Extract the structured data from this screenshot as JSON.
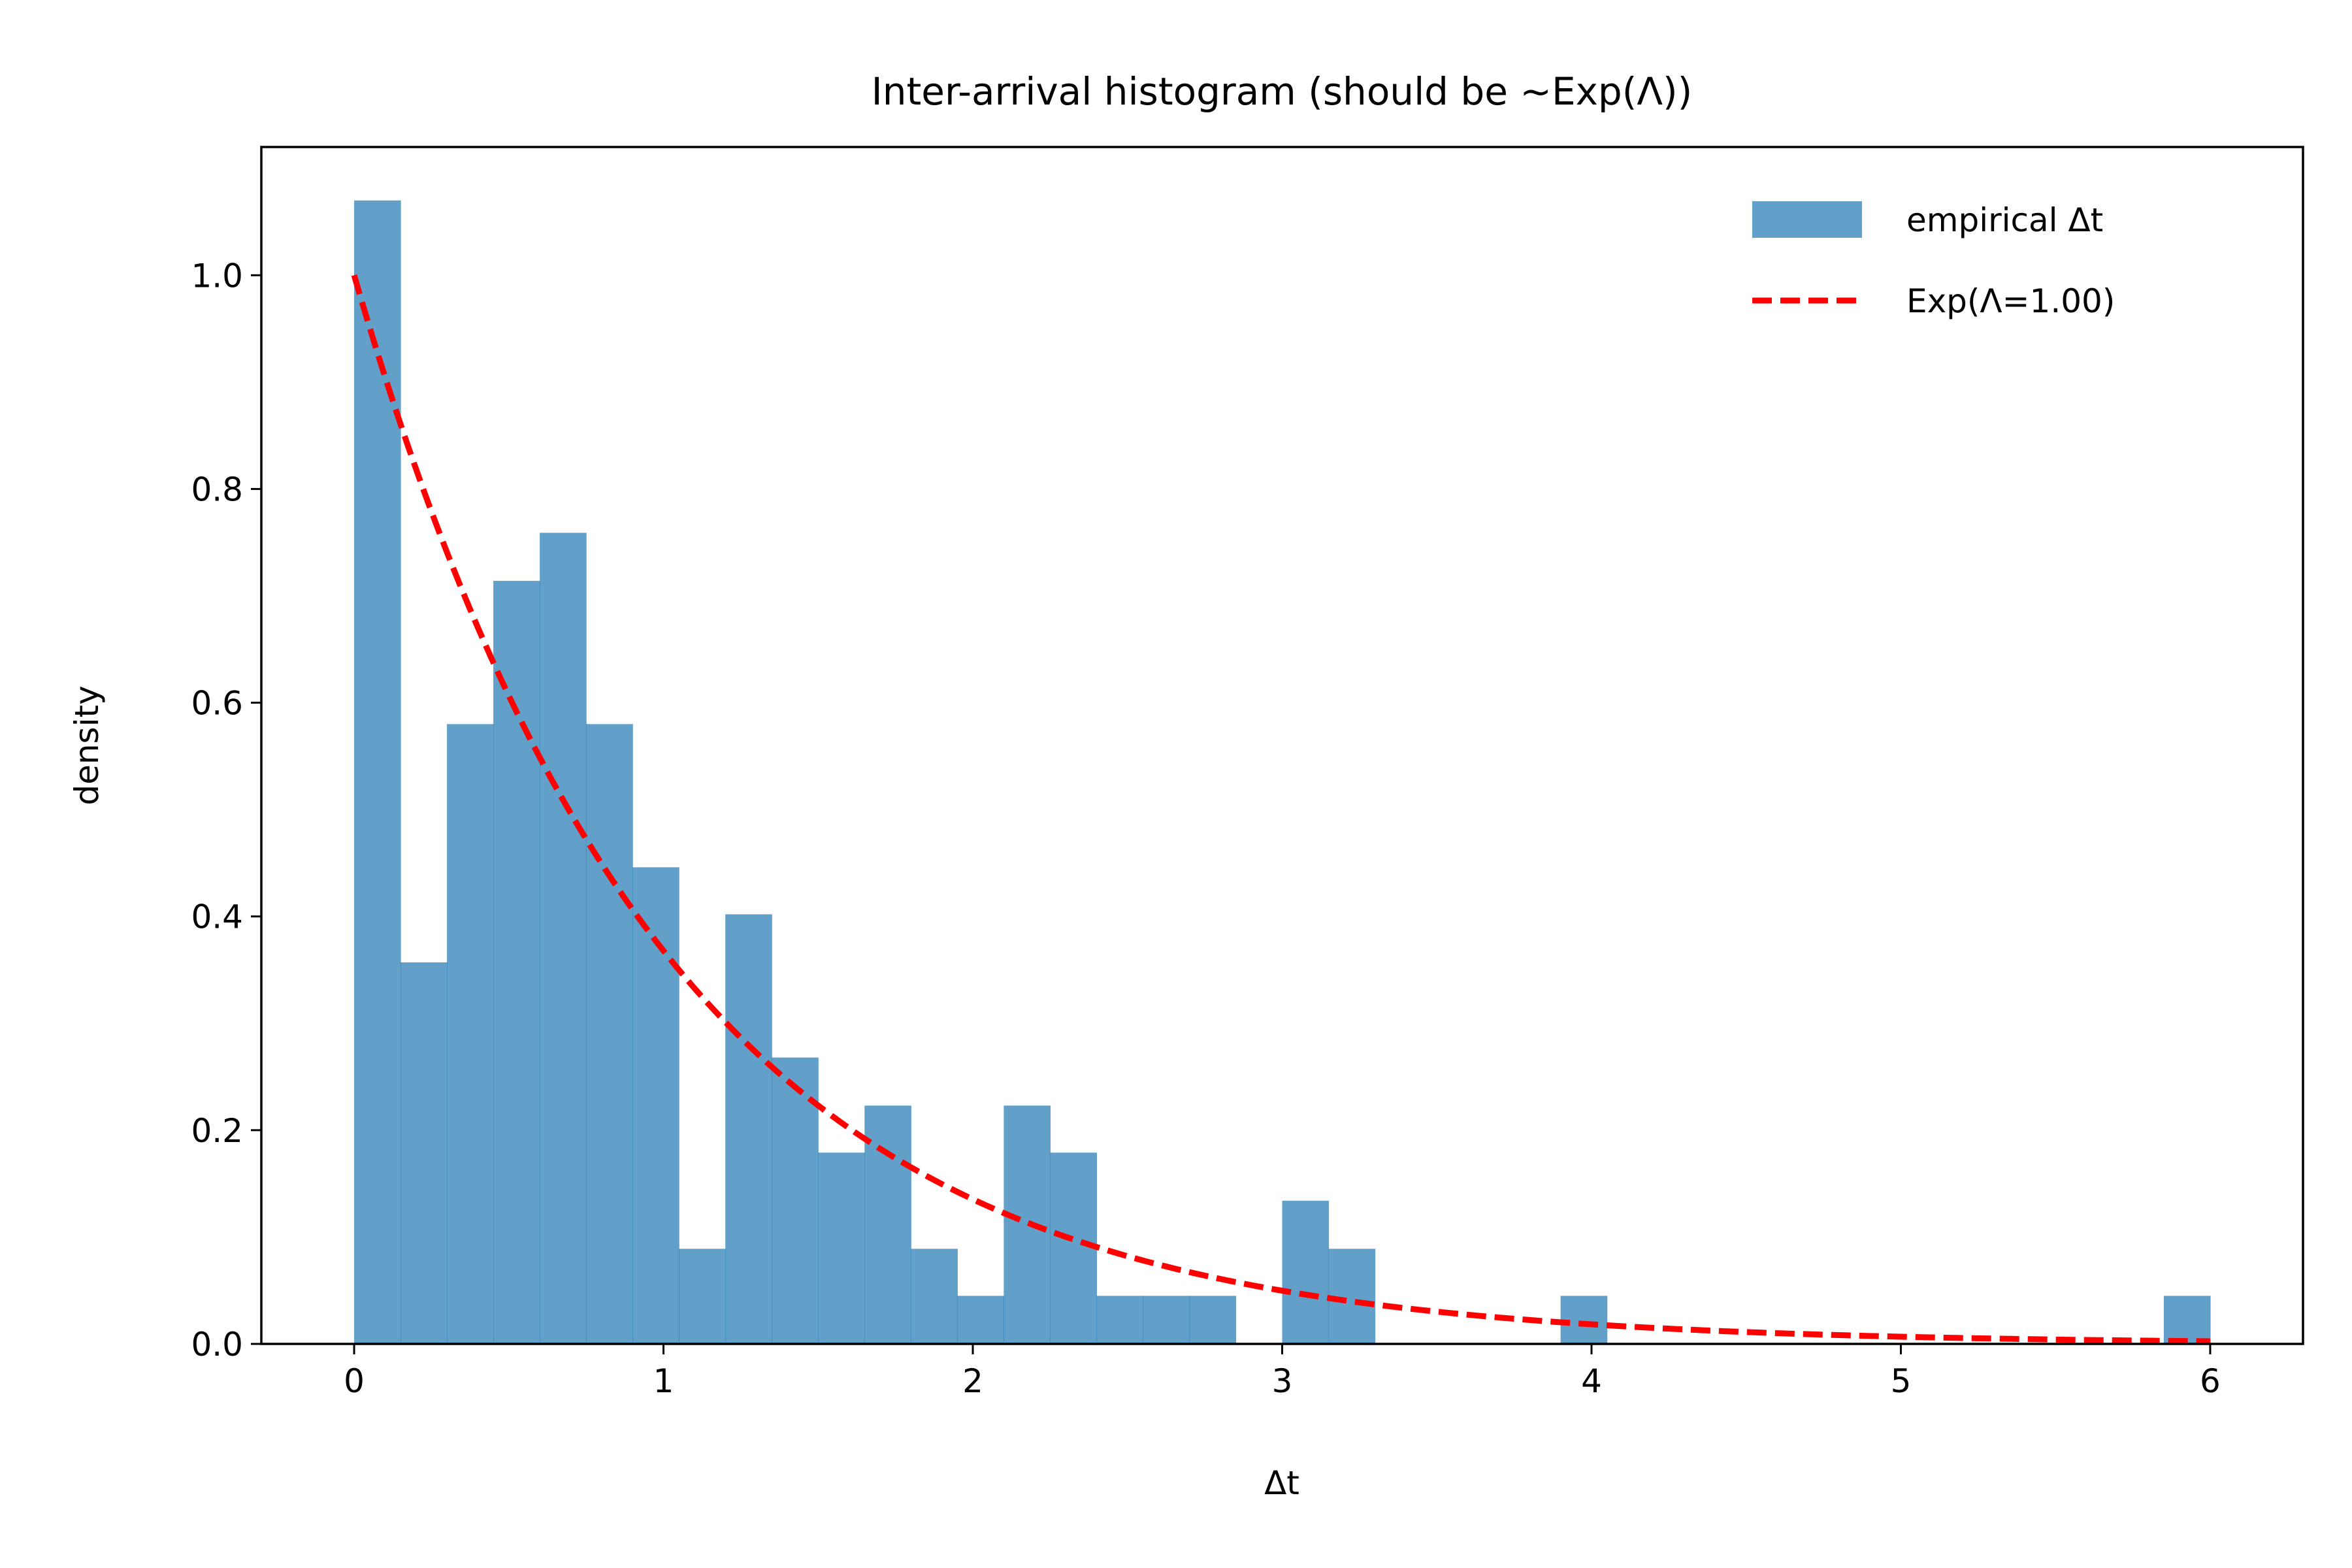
{
  "chart_data": {
    "type": "bar",
    "title": "Inter-arrival histogram (should be ~Exp(Λ))",
    "xlabel": "Δt",
    "ylabel": "density",
    "xlim": [
      -0.3,
      6.3
    ],
    "ylim": [
      0.0,
      1.12
    ],
    "xticks": [
      0,
      1,
      2,
      3,
      4,
      5,
      6
    ],
    "xtick_labels": [
      "0",
      "1",
      "2",
      "3",
      "4",
      "5",
      "6"
    ],
    "yticks": [
      0.0,
      0.2,
      0.4,
      0.6,
      0.8,
      1.0
    ],
    "ytick_labels": [
      "0.0",
      "0.2",
      "0.4",
      "0.6",
      "0.8",
      "1.0"
    ],
    "grid": false,
    "legend_position": "top-right",
    "series": [
      {
        "name": "empirical Δt",
        "kind": "histogram",
        "color": "#1f77b4",
        "opacity": 0.7,
        "bin_start": 0.0,
        "bin_width": 0.15,
        "values": [
          1.07,
          0.357,
          0.58,
          0.714,
          0.759,
          0.58,
          0.446,
          0.089,
          0.402,
          0.268,
          0.179,
          0.223,
          0.089,
          0.045,
          0.223,
          0.179,
          0.045,
          0.045,
          0.045,
          0.0,
          0.134,
          0.089,
          0.0,
          0.0,
          0.0,
          0.0,
          0.045,
          0.0,
          0.0,
          0.0,
          0.0,
          0.0,
          0.0,
          0.0,
          0.0,
          0.0,
          0.0,
          0.0,
          0.0,
          0.045
        ]
      },
      {
        "name": "Exp(Λ=1.00)",
        "kind": "curve",
        "color": "#ff0000",
        "line_style": "dashed",
        "function": "exp(-x)",
        "x_range": [
          0,
          6
        ]
      }
    ]
  }
}
